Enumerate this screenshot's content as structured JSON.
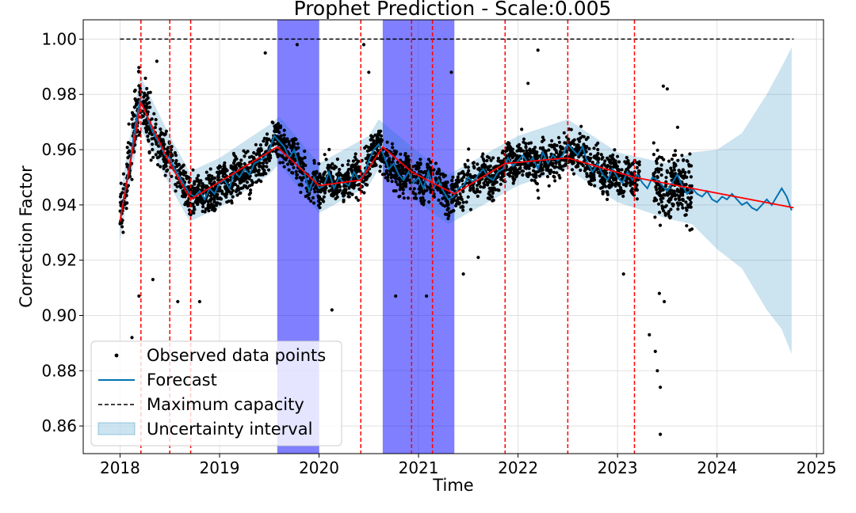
{
  "chart_data": {
    "type": "scatter",
    "title": "Prophet Prediction - Scale:0.005",
    "xlabel": "Time",
    "ylabel": "Correction Factor",
    "xlim": [
      2017.63,
      2025.07
    ],
    "ylim": [
      0.85,
      1.007
    ],
    "x_ticks": [
      2018,
      2019,
      2020,
      2021,
      2022,
      2023,
      2024,
      2025
    ],
    "x_tick_labels": [
      "2018",
      "2019",
      "2020",
      "2021",
      "2022",
      "2023",
      "2024",
      "2025"
    ],
    "y_ticks": [
      0.86,
      0.88,
      0.9,
      0.92,
      0.94,
      0.96,
      0.98,
      1.0
    ],
    "y_tick_labels": [
      "0.86",
      "0.88",
      "0.90",
      "0.92",
      "0.94",
      "0.96",
      "0.98",
      "1.00"
    ],
    "grid": true,
    "legend_position": "lower-left",
    "legend": [
      {
        "key": "observed",
        "label": "Observed data points"
      },
      {
        "key": "forecast",
        "label": "Forecast"
      },
      {
        "key": "capacity",
        "label": "Maximum capacity"
      },
      {
        "key": "uncertainty",
        "label": "Uncertainty interval"
      }
    ],
    "colors": {
      "observed": "#000000",
      "forecast": "#0072B2",
      "uncertainty": "#0072B2",
      "capacity": "#000000",
      "trend": "#ff0000",
      "changepoint": "#ff0000",
      "highlight": "#0000ff",
      "grid": "#e0e0e0"
    },
    "maximum_capacity": 1.0,
    "capacity_x_range": [
      2018.0,
      2024.77
    ],
    "observed_x_range": [
      2018.0,
      2023.75
    ],
    "forecast_x_range": [
      2018.0,
      2024.77
    ],
    "highlighted_periods": [
      [
        2019.58,
        2020.0
      ],
      [
        2020.64,
        2021.36
      ]
    ],
    "changepoints": [
      2018.21,
      2018.5,
      2018.71,
      2020.42,
      2020.93,
      2021.14,
      2021.87,
      2022.5,
      2023.17
    ],
    "trend": [
      [
        2018.0,
        0.934
      ],
      [
        2018.21,
        0.977
      ],
      [
        2018.5,
        0.955
      ],
      [
        2018.71,
        0.942
      ],
      [
        2019.58,
        0.961
      ],
      [
        2020.0,
        0.947
      ],
      [
        2020.42,
        0.949
      ],
      [
        2020.64,
        0.961
      ],
      [
        2020.93,
        0.952
      ],
      [
        2021.14,
        0.948
      ],
      [
        2021.36,
        0.944
      ],
      [
        2021.87,
        0.955
      ],
      [
        2022.5,
        0.957
      ],
      [
        2023.17,
        0.95
      ],
      [
        2024.77,
        0.939
      ]
    ],
    "forecast": [
      [
        2018.0,
        0.934
      ],
      [
        2018.05,
        0.945
      ],
      [
        2018.1,
        0.955
      ],
      [
        2018.15,
        0.968
      ],
      [
        2018.2,
        0.978
      ],
      [
        2018.25,
        0.974
      ],
      [
        2018.3,
        0.969
      ],
      [
        2018.35,
        0.965
      ],
      [
        2018.4,
        0.962
      ],
      [
        2018.45,
        0.958
      ],
      [
        2018.5,
        0.957
      ],
      [
        2018.55,
        0.953
      ],
      [
        2018.6,
        0.95
      ],
      [
        2018.65,
        0.947
      ],
      [
        2018.7,
        0.944
      ],
      [
        2018.75,
        0.943
      ],
      [
        2018.8,
        0.945
      ],
      [
        2018.85,
        0.942
      ],
      [
        2018.9,
        0.946
      ],
      [
        2018.95,
        0.944
      ],
      [
        2019.0,
        0.948
      ],
      [
        2019.05,
        0.949
      ],
      [
        2019.1,
        0.946
      ],
      [
        2019.15,
        0.952
      ],
      [
        2019.2,
        0.95
      ],
      [
        2019.25,
        0.953
      ],
      [
        2019.3,
        0.951
      ],
      [
        2019.35,
        0.955
      ],
      [
        2019.4,
        0.956
      ],
      [
        2019.45,
        0.957
      ],
      [
        2019.5,
        0.96
      ],
      [
        2019.55,
        0.965
      ],
      [
        2019.6,
        0.963
      ],
      [
        2019.65,
        0.961
      ],
      [
        2019.7,
        0.957
      ],
      [
        2019.75,
        0.96
      ],
      [
        2019.8,
        0.954
      ],
      [
        2019.85,
        0.952
      ],
      [
        2019.9,
        0.945
      ],
      [
        2019.95,
        0.95
      ],
      [
        2020.0,
        0.946
      ],
      [
        2020.05,
        0.947
      ],
      [
        2020.1,
        0.952
      ],
      [
        2020.15,
        0.946
      ],
      [
        2020.2,
        0.95
      ],
      [
        2020.25,
        0.948
      ],
      [
        2020.3,
        0.947
      ],
      [
        2020.35,
        0.952
      ],
      [
        2020.4,
        0.949
      ],
      [
        2020.45,
        0.951
      ],
      [
        2020.5,
        0.956
      ],
      [
        2020.55,
        0.96
      ],
      [
        2020.6,
        0.962
      ],
      [
        2020.65,
        0.958
      ],
      [
        2020.7,
        0.953
      ],
      [
        2020.75,
        0.955
      ],
      [
        2020.8,
        0.951
      ],
      [
        2020.85,
        0.949
      ],
      [
        2020.9,
        0.952
      ],
      [
        2020.95,
        0.948
      ],
      [
        2021.0,
        0.95
      ],
      [
        2021.05,
        0.946
      ],
      [
        2021.1,
        0.952
      ],
      [
        2021.15,
        0.946
      ],
      [
        2021.2,
        0.949
      ],
      [
        2021.25,
        0.945
      ],
      [
        2021.3,
        0.942
      ],
      [
        2021.35,
        0.943
      ],
      [
        2021.4,
        0.946
      ],
      [
        2021.45,
        0.947
      ],
      [
        2021.5,
        0.95
      ],
      [
        2021.55,
        0.948
      ],
      [
        2021.6,
        0.951
      ],
      [
        2021.65,
        0.953
      ],
      [
        2021.7,
        0.95
      ],
      [
        2021.75,
        0.949
      ],
      [
        2021.8,
        0.952
      ],
      [
        2021.85,
        0.953
      ],
      [
        2021.9,
        0.957
      ],
      [
        2021.95,
        0.954
      ],
      [
        2022.0,
        0.956
      ],
      [
        2022.05,
        0.958
      ],
      [
        2022.1,
        0.955
      ],
      [
        2022.15,
        0.957
      ],
      [
        2022.2,
        0.953
      ],
      [
        2022.25,
        0.959
      ],
      [
        2022.3,
        0.955
      ],
      [
        2022.35,
        0.958
      ],
      [
        2022.4,
        0.956
      ],
      [
        2022.45,
        0.958
      ],
      [
        2022.5,
        0.962
      ],
      [
        2022.55,
        0.96
      ],
      [
        2022.6,
        0.958
      ],
      [
        2022.65,
        0.961
      ],
      [
        2022.7,
        0.955
      ],
      [
        2022.75,
        0.952
      ],
      [
        2022.8,
        0.955
      ],
      [
        2022.85,
        0.951
      ],
      [
        2022.9,
        0.949
      ],
      [
        2022.95,
        0.953
      ],
      [
        2023.0,
        0.95
      ],
      [
        2023.05,
        0.948
      ],
      [
        2023.1,
        0.952
      ],
      [
        2023.15,
        0.949
      ],
      [
        2023.2,
        0.951
      ],
      [
        2023.25,
        0.948
      ],
      [
        2023.3,
        0.946
      ],
      [
        2023.35,
        0.95
      ],
      [
        2023.4,
        0.949
      ],
      [
        2023.45,
        0.947
      ],
      [
        2023.5,
        0.945
      ],
      [
        2023.55,
        0.948
      ],
      [
        2023.6,
        0.951
      ],
      [
        2023.65,
        0.947
      ],
      [
        2023.7,
        0.944
      ],
      [
        2023.75,
        0.946
      ],
      [
        2023.8,
        0.944
      ],
      [
        2023.85,
        0.943
      ],
      [
        2023.9,
        0.945
      ],
      [
        2023.95,
        0.942
      ],
      [
        2024.0,
        0.941
      ],
      [
        2024.05,
        0.943
      ],
      [
        2024.1,
        0.942
      ],
      [
        2024.15,
        0.944
      ],
      [
        2024.2,
        0.942
      ],
      [
        2024.25,
        0.94
      ],
      [
        2024.3,
        0.941
      ],
      [
        2024.35,
        0.939
      ],
      [
        2024.4,
        0.938
      ],
      [
        2024.45,
        0.94
      ],
      [
        2024.5,
        0.942
      ],
      [
        2024.55,
        0.94
      ],
      [
        2024.6,
        0.943
      ],
      [
        2024.65,
        0.946
      ],
      [
        2024.7,
        0.943
      ],
      [
        2024.75,
        0.938
      ]
    ],
    "uncertainty_interval": [
      [
        2018.0,
        0.927,
        0.943
      ],
      [
        2018.2,
        0.968,
        0.987
      ],
      [
        2018.5,
        0.947,
        0.965
      ],
      [
        2018.7,
        0.934,
        0.952
      ],
      [
        2019.0,
        0.939,
        0.957
      ],
      [
        2019.5,
        0.951,
        0.969
      ],
      [
        2019.6,
        0.955,
        0.972
      ],
      [
        2020.0,
        0.937,
        0.955
      ],
      [
        2020.5,
        0.947,
        0.965
      ],
      [
        2020.6,
        0.953,
        0.971
      ],
      [
        2021.0,
        0.941,
        0.959
      ],
      [
        2021.3,
        0.933,
        0.951
      ],
      [
        2022.0,
        0.947,
        0.965
      ],
      [
        2022.5,
        0.953,
        0.971
      ],
      [
        2023.0,
        0.941,
        0.959
      ],
      [
        2023.5,
        0.935,
        0.955
      ],
      [
        2023.75,
        0.933,
        0.959
      ],
      [
        2024.0,
        0.924,
        0.96
      ],
      [
        2024.25,
        0.917,
        0.966
      ],
      [
        2024.5,
        0.902,
        0.98
      ],
      [
        2024.65,
        0.895,
        0.99
      ],
      [
        2024.75,
        0.886,
        0.997
      ]
    ],
    "observed_outliers": [
      [
        2018.12,
        0.892
      ],
      [
        2018.19,
        0.907
      ],
      [
        2018.33,
        0.913
      ],
      [
        2018.37,
        0.992
      ],
      [
        2018.58,
        0.905
      ],
      [
        2018.8,
        0.905
      ],
      [
        2019.46,
        0.995
      ],
      [
        2019.78,
        0.998
      ],
      [
        2020.13,
        0.902
      ],
      [
        2020.45,
        0.998
      ],
      [
        2020.5,
        0.988
      ],
      [
        2020.77,
        0.907
      ],
      [
        2021.08,
        0.907
      ],
      [
        2021.33,
        0.988
      ],
      [
        2021.45,
        0.915
      ],
      [
        2021.6,
        0.921
      ],
      [
        2022.1,
        0.984
      ],
      [
        2022.2,
        0.996
      ],
      [
        2023.06,
        0.915
      ],
      [
        2023.32,
        0.893
      ],
      [
        2023.38,
        0.887
      ],
      [
        2023.4,
        0.88
      ],
      [
        2023.43,
        0.874
      ],
      [
        2023.43,
        0.857
      ],
      [
        2023.46,
        0.983
      ],
      [
        2023.5,
        0.982
      ],
      [
        2023.42,
        0.908
      ],
      [
        2023.47,
        0.905
      ]
    ]
  }
}
